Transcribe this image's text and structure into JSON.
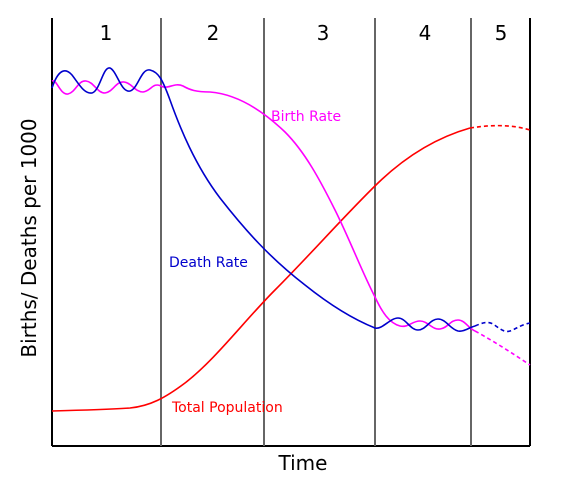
{
  "chart_data": {
    "type": "line",
    "xlabel": "Time",
    "ylabel": "Births/ Deaths per 1000",
    "stages": [
      "1",
      "2",
      "3",
      "4",
      "5"
    ],
    "series": [
      {
        "name": "Birth Rate",
        "color": "#ff00ff"
      },
      {
        "name": "Death Rate",
        "color": "#0000cc"
      },
      {
        "name": "Total Population",
        "color": "#ff0000"
      }
    ]
  }
}
